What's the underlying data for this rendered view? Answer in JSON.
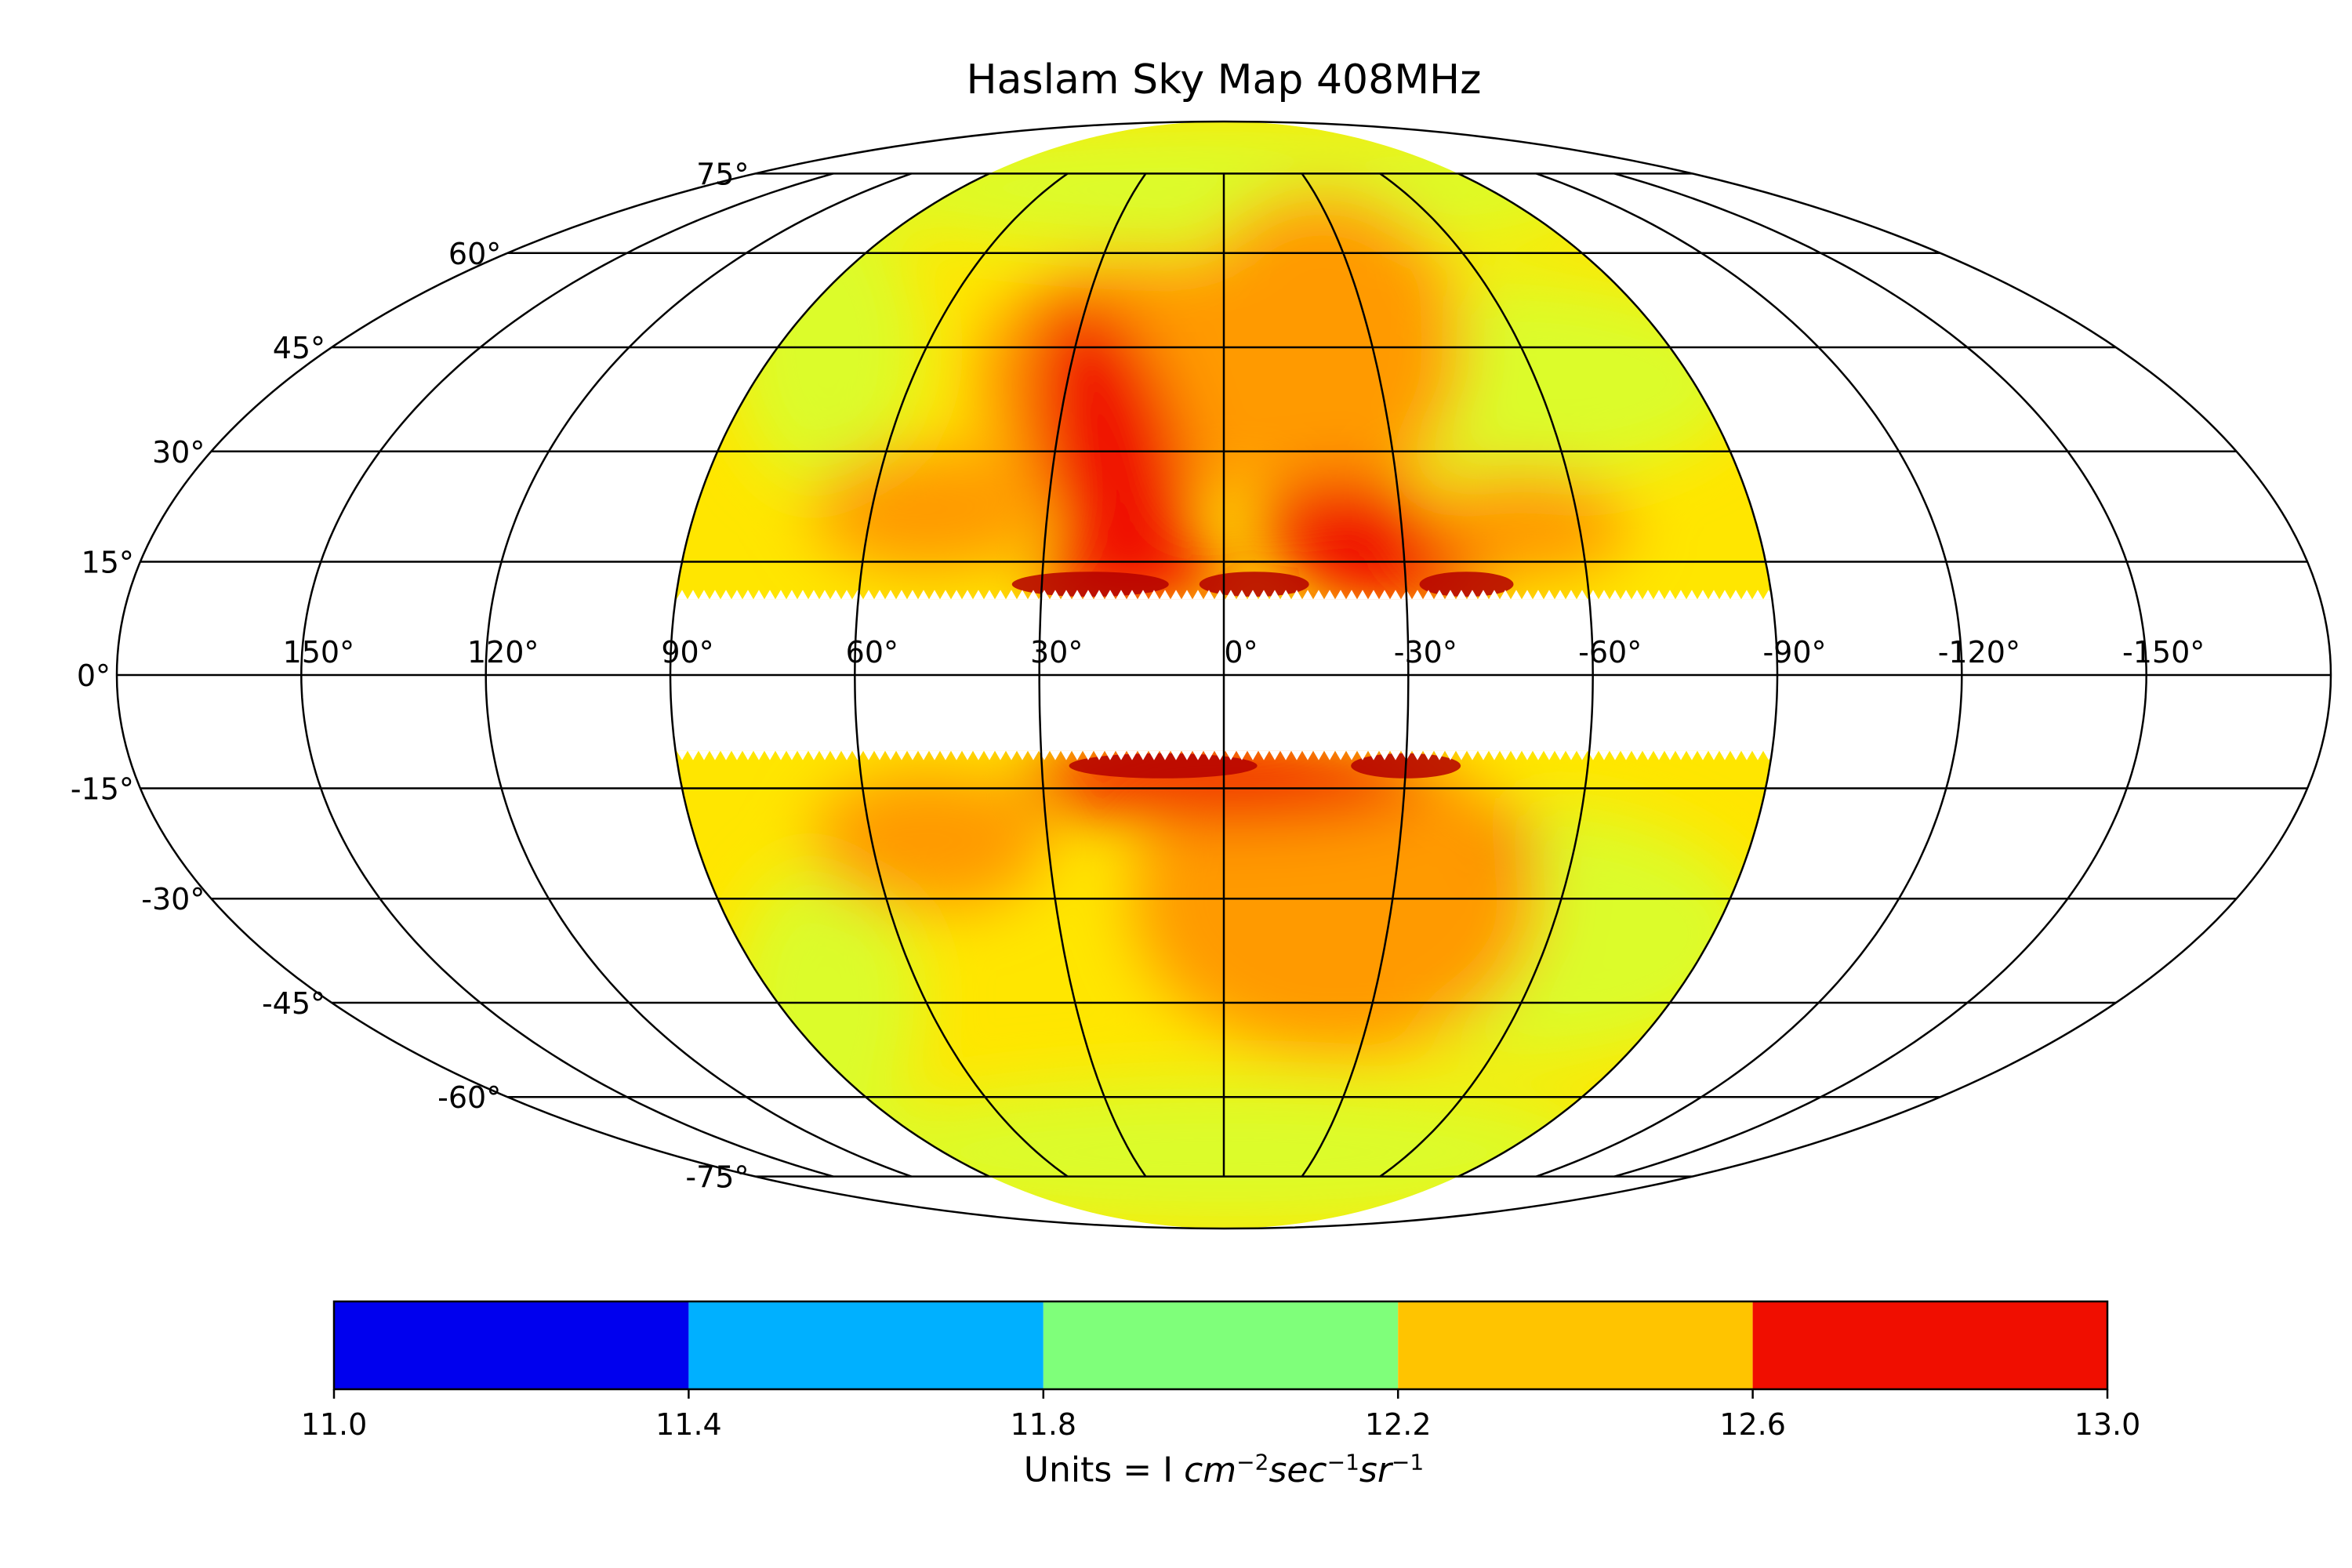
{
  "title": "Haslam Sky Map 408MHz",
  "projection": "mollweide",
  "grid": true,
  "sky_coverage_longitude_deg": [
    -90,
    90
  ],
  "masked_latitude_band_deg": [
    -10,
    10
  ],
  "latitude_labels": [
    "75°",
    "60°",
    "45°",
    "30°",
    "15°",
    "0°",
    "-15°",
    "-30°",
    "-45°",
    "-60°",
    "-75°"
  ],
  "longitude_labels": [
    "150°",
    "120°",
    "90°",
    "60°",
    "30°",
    "0°",
    "-30°",
    "-60°",
    "-90°",
    "-120°",
    "-150°"
  ],
  "colorbar": {
    "ticks": [
      "11.0",
      "11.4",
      "11.8",
      "12.2",
      "12.6",
      "13.0"
    ],
    "bins": [
      {
        "from": 11.0,
        "to": 11.4,
        "color": "#0000ee"
      },
      {
        "from": 11.4,
        "to": 11.8,
        "color": "#00b0ff"
      },
      {
        "from": 11.8,
        "to": 12.2,
        "color": "#7fff7a"
      },
      {
        "from": 12.2,
        "to": 12.6,
        "color": "#ffc400"
      },
      {
        "from": 12.6,
        "to": 13.0,
        "color": "#f00e00"
      }
    ],
    "label_prefix": "Units = I ",
    "label_units": [
      {
        "base": "cm",
        "exp": "−2"
      },
      {
        "base": "sec",
        "exp": "−1"
      },
      {
        "base": "sr",
        "exp": "−1"
      }
    ]
  },
  "map_colors": {
    "low": "#dcfc2a",
    "mid": "#ffe600",
    "orange": "#ff9a00",
    "high": "#f01000",
    "peak": "#b40000"
  }
}
